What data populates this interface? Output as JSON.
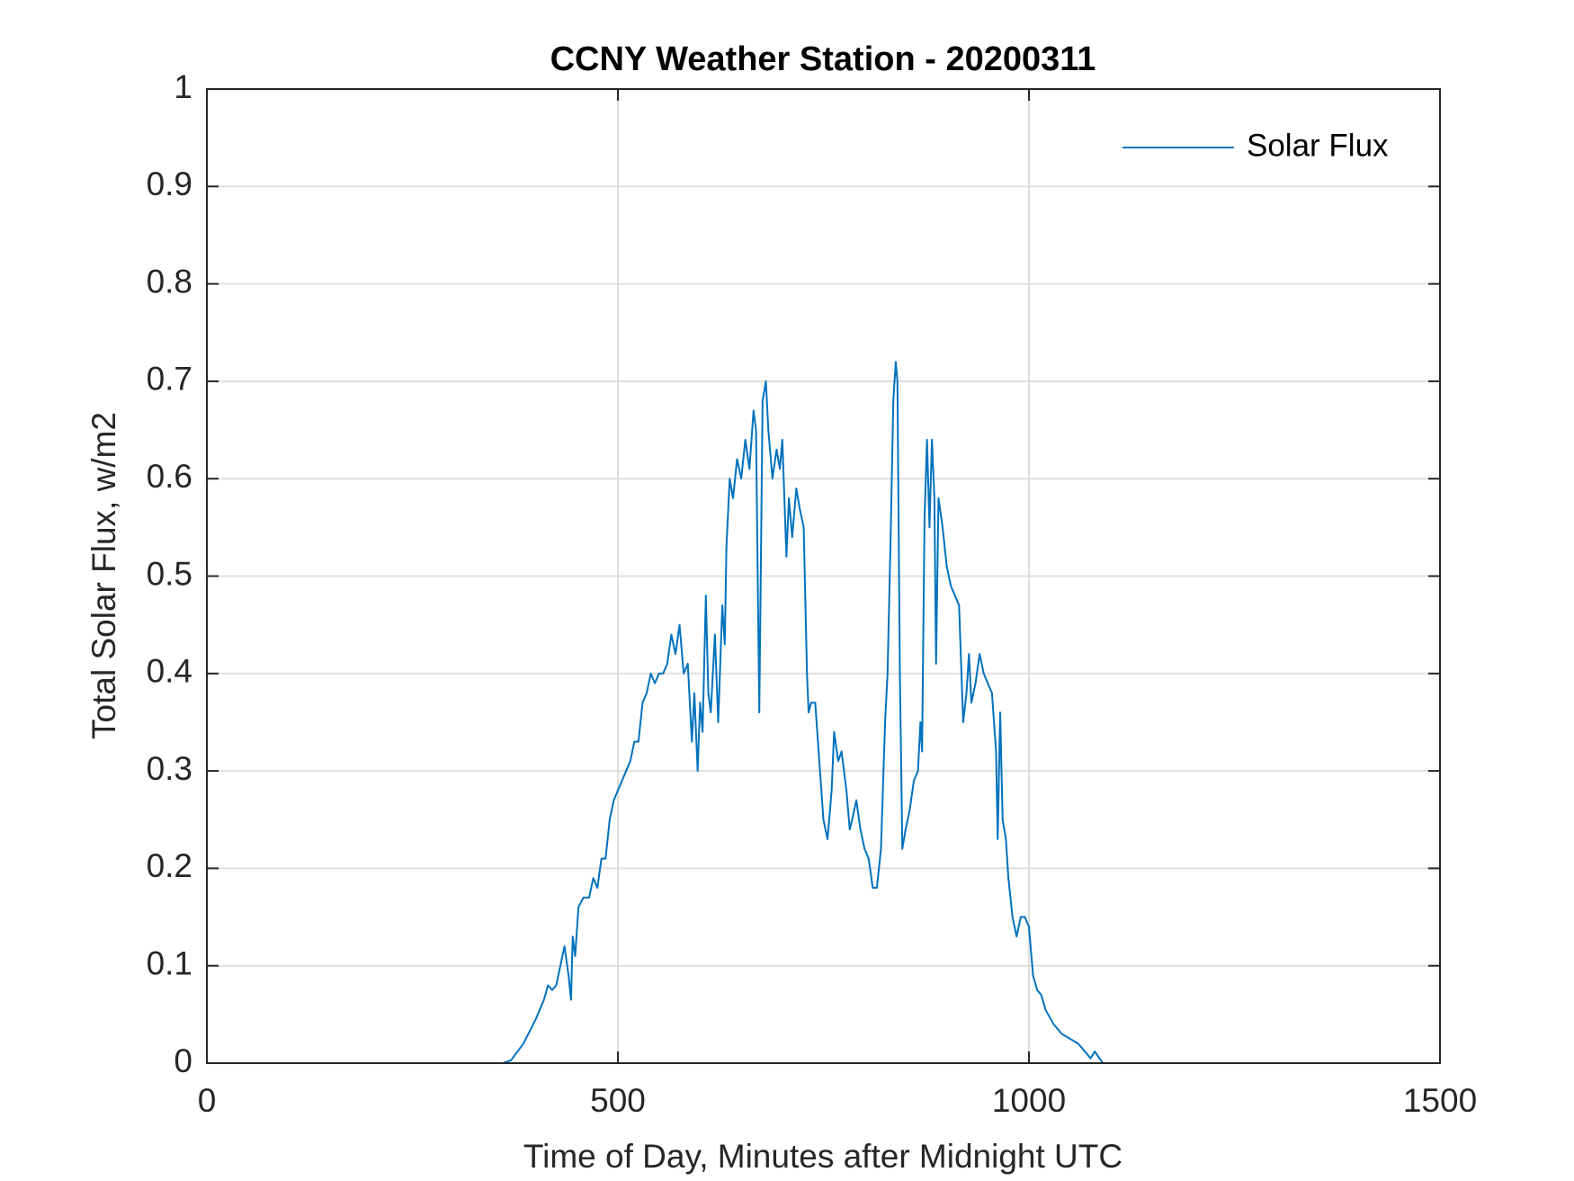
{
  "chart_data": {
    "type": "line",
    "title": "CCNY Weather Station - 20200311",
    "xlabel": "Time of Day, Minutes after Midnight UTC",
    "ylabel": "Total Solar Flux, w/m2",
    "x": [
      0,
      360,
      370,
      385,
      400,
      410,
      415,
      420,
      425,
      430,
      435,
      440,
      443,
      445,
      448,
      452,
      458,
      465,
      470,
      475,
      480,
      485,
      490,
      495,
      505,
      515,
      520,
      525,
      530,
      535,
      540,
      545,
      550,
      555,
      560,
      565,
      570,
      575,
      580,
      585,
      590,
      593,
      597,
      600,
      603,
      607,
      610,
      613,
      618,
      622,
      627,
      630,
      632,
      636,
      640,
      645,
      650,
      655,
      660,
      665,
      668,
      672,
      676,
      680,
      683,
      688,
      693,
      697,
      700,
      705,
      708,
      712,
      717,
      721,
      726,
      730,
      732,
      735,
      740,
      745,
      750,
      755,
      760,
      763,
      768,
      772,
      778,
      782,
      785,
      790,
      795,
      800,
      805,
      810,
      815,
      820,
      825,
      828,
      832,
      835,
      838,
      840,
      843,
      846,
      850,
      855,
      860,
      865,
      868,
      870,
      873,
      876,
      879,
      882,
      885,
      887,
      890,
      895,
      900,
      905,
      910,
      915,
      920,
      924,
      927,
      930,
      935,
      940,
      945,
      950,
      955,
      960,
      962,
      965,
      968,
      972,
      975,
      980,
      985,
      990,
      995,
      1000,
      1005,
      1010,
      1015,
      1020,
      1030,
      1040,
      1050,
      1060,
      1070,
      1075,
      1080,
      1090,
      1440
    ],
    "series": [
      {
        "name": "Solar Flux",
        "color": "#0072bd",
        "values": [
          0,
          0,
          0.003,
          0.02,
          0.045,
          0.065,
          0.08,
          0.075,
          0.08,
          0.1,
          0.12,
          0.09,
          0.065,
          0.13,
          0.11,
          0.16,
          0.17,
          0.17,
          0.19,
          0.18,
          0.21,
          0.21,
          0.25,
          0.27,
          0.29,
          0.31,
          0.33,
          0.33,
          0.37,
          0.38,
          0.4,
          0.39,
          0.4,
          0.4,
          0.41,
          0.44,
          0.42,
          0.45,
          0.4,
          0.41,
          0.33,
          0.38,
          0.3,
          0.37,
          0.34,
          0.48,
          0.38,
          0.36,
          0.44,
          0.35,
          0.47,
          0.43,
          0.53,
          0.6,
          0.58,
          0.62,
          0.6,
          0.64,
          0.61,
          0.67,
          0.65,
          0.36,
          0.68,
          0.7,
          0.65,
          0.6,
          0.63,
          0.61,
          0.64,
          0.52,
          0.58,
          0.54,
          0.59,
          0.57,
          0.55,
          0.4,
          0.36,
          0.37,
          0.37,
          0.31,
          0.25,
          0.23,
          0.28,
          0.34,
          0.31,
          0.32,
          0.28,
          0.24,
          0.25,
          0.27,
          0.24,
          0.22,
          0.21,
          0.18,
          0.18,
          0.22,
          0.35,
          0.4,
          0.55,
          0.68,
          0.72,
          0.7,
          0.4,
          0.22,
          0.24,
          0.26,
          0.29,
          0.3,
          0.35,
          0.32,
          0.56,
          0.64,
          0.55,
          0.64,
          0.58,
          0.41,
          0.58,
          0.55,
          0.51,
          0.49,
          0.48,
          0.47,
          0.35,
          0.38,
          0.42,
          0.37,
          0.39,
          0.42,
          0.4,
          0.39,
          0.38,
          0.32,
          0.23,
          0.36,
          0.25,
          0.23,
          0.19,
          0.15,
          0.13,
          0.15,
          0.15,
          0.14,
          0.09,
          0.075,
          0.07,
          0.055,
          0.04,
          0.03,
          0.025,
          0.02,
          0.01,
          0.005,
          0.012,
          0,
          0
        ]
      }
    ],
    "xlim": [
      0,
      1500
    ],
    "xticks": [
      0,
      500,
      1000,
      1500
    ],
    "ylim": [
      0,
      1
    ],
    "yticks": [
      0,
      0.1,
      0.2,
      0.3,
      0.4,
      0.5,
      0.6,
      0.7,
      0.8,
      0.9,
      1
    ],
    "grid": true,
    "legend": "northeast"
  }
}
